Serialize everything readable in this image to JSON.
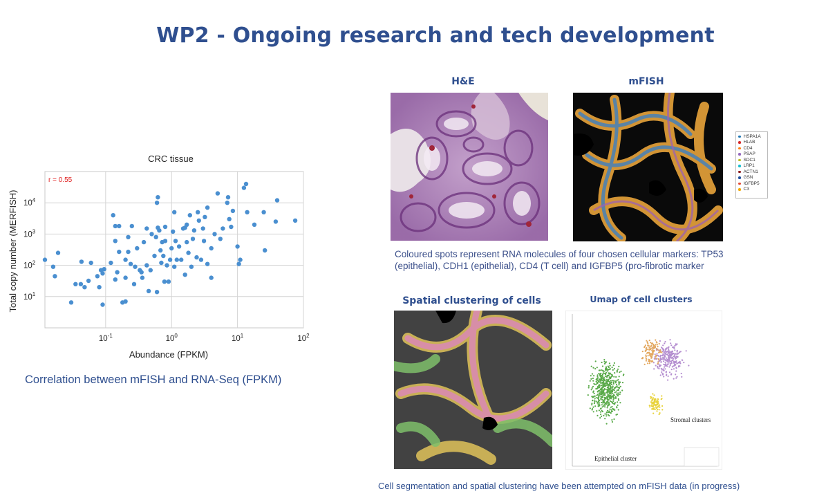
{
  "slide": {
    "title": "WP2 - Ongoing research and tech development"
  },
  "scatter": {
    "correlation_caption": "Correlation between mFISH and RNA-Seq (FPKM)"
  },
  "panels": {
    "he_title": "H&E",
    "mfish_title": "mFISH",
    "mfish_caption": "Coloured spots represent RNA molecules of four chosen cellular markers: TP53 (epithelial),  CDH1 (epithelial), CD4 (T cell) and IGFBP5 (pro-fibrotic marker",
    "spatial_title": "Spatial clustering of cells",
    "umap_title": "Umap of cell clusters",
    "umap_label_epithelial": "Epithelial cluster",
    "umap_label_stromal": "Stromal clusters",
    "bottom_caption": "Cell segmentation and spatial clustering have been attempted on mFISH  data (in progress)"
  },
  "legend": {
    "items": [
      {
        "label": "HSPA1A",
        "color": "#1f77b4"
      },
      {
        "label": "HLAB",
        "color": "#d62728"
      },
      {
        "label": "CD4",
        "color": "#ff7f0e"
      },
      {
        "label": "PSAP",
        "color": "#9467bd"
      },
      {
        "label": "SDC1",
        "color": "#bcbd22"
      },
      {
        "label": "LRP1",
        "color": "#17becf"
      },
      {
        "label": "ACTN1",
        "color": "#8c1a1a"
      },
      {
        "label": "GSN",
        "color": "#1f4e9c"
      },
      {
        "label": "IGFBP5",
        "color": "#e34a33"
      },
      {
        "label": "C3",
        "color": "#f2a900"
      }
    ]
  },
  "chart_data": {
    "type": "scatter",
    "title": "CRC tissue",
    "xlabel": "Abundance (FPKM)",
    "ylabel": "Total copy number (MERFISH)",
    "x_scale": "log",
    "y_scale": "log",
    "xlim": [
      0.012,
      100
    ],
    "ylim": [
      1,
      100000
    ],
    "x_ticks": [
      {
        "value": 0.1,
        "base": "10",
        "exp": "-1"
      },
      {
        "value": 1,
        "base": "10",
        "exp": "0"
      },
      {
        "value": 10,
        "base": "10",
        "exp": "1"
      },
      {
        "value": 100,
        "base": "10",
        "exp": "2"
      }
    ],
    "y_ticks": [
      {
        "value": 10,
        "base": "10",
        "exp": "1"
      },
      {
        "value": 100,
        "base": "10",
        "exp": "2"
      },
      {
        "value": 1000,
        "base": "10",
        "exp": "3"
      },
      {
        "value": 10000,
        "base": "10",
        "exp": "4"
      }
    ],
    "grid": true,
    "annotation": "r = 0.55",
    "annotation_color": "#e02020",
    "marker_color": "#4a8fd0",
    "points": [
      [
        0.012,
        150
      ],
      [
        0.016,
        90
      ],
      [
        0.017,
        45
      ],
      [
        0.019,
        250
      ],
      [
        0.03,
        6.5
      ],
      [
        0.035,
        25
      ],
      [
        0.042,
        25
      ],
      [
        0.043,
        130
      ],
      [
        0.048,
        20
      ],
      [
        0.055,
        32
      ],
      [
        0.06,
        120
      ],
      [
        0.075,
        45
      ],
      [
        0.08,
        20
      ],
      [
        0.085,
        70
      ],
      [
        0.09,
        5.5
      ],
      [
        0.09,
        55
      ],
      [
        0.095,
        75
      ],
      [
        0.12,
        120
      ],
      [
        0.13,
        4000
      ],
      [
        0.14,
        600
      ],
      [
        0.14,
        1800
      ],
      [
        0.14,
        35
      ],
      [
        0.15,
        60
      ],
      [
        0.16,
        1800
      ],
      [
        0.16,
        270
      ],
      [
        0.18,
        6.5
      ],
      [
        0.2,
        7
      ],
      [
        0.2,
        150
      ],
      [
        0.2,
        40
      ],
      [
        0.22,
        270
      ],
      [
        0.22,
        800
      ],
      [
        0.24,
        110
      ],
      [
        0.25,
        1800
      ],
      [
        0.27,
        25
      ],
      [
        0.28,
        90
      ],
      [
        0.3,
        350
      ],
      [
        0.33,
        70
      ],
      [
        0.35,
        60
      ],
      [
        0.36,
        40
      ],
      [
        0.38,
        550
      ],
      [
        0.42,
        100
      ],
      [
        0.42,
        1500
      ],
      [
        0.45,
        15
      ],
      [
        0.48,
        70
      ],
      [
        0.5,
        1000
      ],
      [
        0.55,
        200
      ],
      [
        0.58,
        800
      ],
      [
        0.6,
        14
      ],
      [
        0.6,
        10000
      ],
      [
        0.62,
        15000
      ],
      [
        0.62,
        1600
      ],
      [
        0.65,
        1300
      ],
      [
        0.68,
        300
      ],
      [
        0.7,
        120
      ],
      [
        0.72,
        550
      ],
      [
        0.75,
        200
      ],
      [
        0.78,
        30
      ],
      [
        0.8,
        600
      ],
      [
        0.8,
        1700
      ],
      [
        0.85,
        100
      ],
      [
        0.9,
        30
      ],
      [
        0.95,
        150
      ],
      [
        1.0,
        350
      ],
      [
        1.05,
        1200
      ],
      [
        1.1,
        5000
      ],
      [
        1.1,
        90
      ],
      [
        1.15,
        600
      ],
      [
        1.2,
        150
      ],
      [
        1.3,
        400
      ],
      [
        1.4,
        150
      ],
      [
        1.5,
        1500
      ],
      [
        1.6,
        1600
      ],
      [
        1.6,
        50
      ],
      [
        1.7,
        550
      ],
      [
        1.7,
        2000
      ],
      [
        1.8,
        250
      ],
      [
        1.9,
        4000
      ],
      [
        2.0,
        90
      ],
      [
        2.1,
        700
      ],
      [
        2.2,
        1300
      ],
      [
        2.4,
        180
      ],
      [
        2.5,
        5000
      ],
      [
        2.6,
        2700
      ],
      [
        2.8,
        150
      ],
      [
        3.0,
        1500
      ],
      [
        3.1,
        600
      ],
      [
        3.2,
        3500
      ],
      [
        3.5,
        7000
      ],
      [
        3.5,
        110
      ],
      [
        4.0,
        350
      ],
      [
        4.0,
        40
      ],
      [
        4.5,
        1000
      ],
      [
        5.0,
        20000
      ],
      [
        5.5,
        700
      ],
      [
        6.0,
        1500
      ],
      [
        7.0,
        10000
      ],
      [
        7.2,
        15000
      ],
      [
        7.5,
        3000
      ],
      [
        8.0,
        1700
      ],
      [
        8.5,
        5500
      ],
      [
        10.0,
        400
      ],
      [
        10.5,
        110
      ],
      [
        11.0,
        150
      ],
      [
        12.5,
        30000
      ],
      [
        13.5,
        40000
      ],
      [
        14.0,
        5000
      ],
      [
        18.0,
        2000
      ],
      [
        25.0,
        5000
      ],
      [
        26.0,
        300
      ],
      [
        38.0,
        2500
      ],
      [
        40.0,
        12000
      ],
      [
        75.0,
        2700
      ]
    ]
  }
}
